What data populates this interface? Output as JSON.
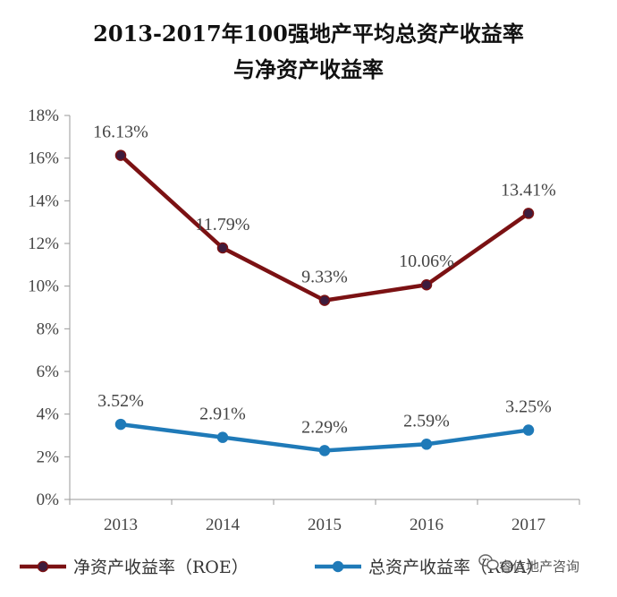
{
  "chart_data": {
    "type": "line",
    "title_line1": "2013-2017年100强地产平均总资产收益率",
    "title_line2": "与净资产收益率",
    "categories": [
      "2013",
      "2014",
      "2015",
      "2016",
      "2017"
    ],
    "ylim": [
      0,
      18
    ],
    "y_ticks": [
      "0%",
      "2%",
      "4%",
      "6%",
      "8%",
      "10%",
      "12%",
      "14%",
      "16%",
      "18%"
    ],
    "series": [
      {
        "name": "净资产收益率（ROE）",
        "values": [
          16.13,
          11.79,
          9.33,
          10.06,
          13.41
        ],
        "labels": [
          "16.13%",
          "11.79%",
          "9.33%",
          "10.06%",
          "13.41%"
        ],
        "color": "#7b1113",
        "marker_color": "#3d1c3d"
      },
      {
        "name": "总资产收益率（ROA）",
        "values": [
          3.52,
          2.91,
          2.29,
          2.59,
          3.25
        ],
        "labels": [
          "3.52%",
          "2.91%",
          "2.29%",
          "2.59%",
          "3.25%"
        ],
        "color": "#1f7ab8",
        "marker_color": "#1f7ab8"
      }
    ],
    "legend_position": "bottom",
    "grid": false
  },
  "watermark": {
    "icon": "wechat-icon",
    "text": "睿信地产咨询"
  }
}
